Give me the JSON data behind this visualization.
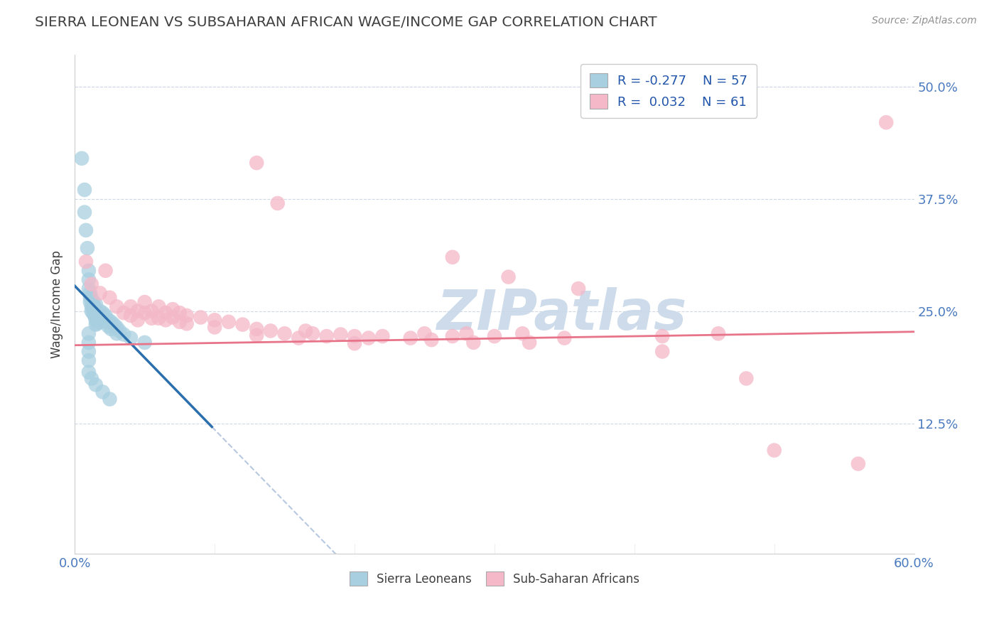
{
  "title": "SIERRA LEONEAN VS SUBSAHARAN AFRICAN WAGE/INCOME GAP CORRELATION CHART",
  "source": "Source: ZipAtlas.com",
  "ylabel": "Wage/Income Gap",
  "xmin": 0.0,
  "xmax": 0.6,
  "ymin": -0.02,
  "ymax": 0.535,
  "blue_color": "#a8cfe0",
  "pink_color": "#f4b8c8",
  "blue_line_color": "#2c6fad",
  "pink_line_color": "#e8748a",
  "dashed_line_color": "#b8c8e0",
  "title_color": "#404040",
  "source_color": "#909090",
  "watermark_color": "#c8d8e8",
  "watermark_text": "ZIPatlas",
  "blue_slope": -1.6,
  "blue_intercept": 0.278,
  "blue_line_xstart": 0.0,
  "blue_line_xend": 0.098,
  "blue_dash_xstart": 0.098,
  "blue_dash_xend": 0.5,
  "pink_slope": 0.025,
  "pink_intercept": 0.212,
  "pink_line_xstart": 0.0,
  "pink_line_xend": 0.6,
  "blue_scatter": [
    [
      0.005,
      0.42
    ],
    [
      0.007,
      0.385
    ],
    [
      0.007,
      0.36
    ],
    [
      0.008,
      0.34
    ],
    [
      0.009,
      0.32
    ],
    [
      0.01,
      0.295
    ],
    [
      0.01,
      0.285
    ],
    [
      0.01,
      0.275
    ],
    [
      0.011,
      0.27
    ],
    [
      0.011,
      0.265
    ],
    [
      0.011,
      0.26
    ],
    [
      0.012,
      0.265
    ],
    [
      0.012,
      0.255
    ],
    [
      0.012,
      0.25
    ],
    [
      0.013,
      0.26
    ],
    [
      0.013,
      0.255
    ],
    [
      0.013,
      0.248
    ],
    [
      0.014,
      0.255
    ],
    [
      0.014,
      0.25
    ],
    [
      0.014,
      0.245
    ],
    [
      0.015,
      0.258
    ],
    [
      0.015,
      0.252
    ],
    [
      0.015,
      0.245
    ],
    [
      0.015,
      0.24
    ],
    [
      0.015,
      0.235
    ],
    [
      0.016,
      0.248
    ],
    [
      0.016,
      0.242
    ],
    [
      0.016,
      0.236
    ],
    [
      0.017,
      0.245
    ],
    [
      0.017,
      0.238
    ],
    [
      0.018,
      0.25
    ],
    [
      0.018,
      0.242
    ],
    [
      0.02,
      0.248
    ],
    [
      0.02,
      0.24
    ],
    [
      0.022,
      0.245
    ],
    [
      0.022,
      0.238
    ],
    [
      0.024,
      0.24
    ],
    [
      0.024,
      0.233
    ],
    [
      0.026,
      0.238
    ],
    [
      0.026,
      0.23
    ],
    [
      0.028,
      0.235
    ],
    [
      0.03,
      0.232
    ],
    [
      0.03,
      0.225
    ],
    [
      0.032,
      0.228
    ],
    [
      0.035,
      0.224
    ],
    [
      0.04,
      0.22
    ],
    [
      0.05,
      0.215
    ],
    [
      0.01,
      0.225
    ],
    [
      0.01,
      0.215
    ],
    [
      0.01,
      0.205
    ],
    [
      0.01,
      0.195
    ],
    [
      0.01,
      0.182
    ],
    [
      0.012,
      0.175
    ],
    [
      0.015,
      0.168
    ],
    [
      0.02,
      0.16
    ],
    [
      0.025,
      0.152
    ]
  ],
  "pink_scatter": [
    [
      0.008,
      0.305
    ],
    [
      0.012,
      0.28
    ],
    [
      0.018,
      0.27
    ],
    [
      0.022,
      0.295
    ],
    [
      0.025,
      0.265
    ],
    [
      0.03,
      0.255
    ],
    [
      0.035,
      0.248
    ],
    [
      0.04,
      0.255
    ],
    [
      0.04,
      0.245
    ],
    [
      0.045,
      0.25
    ],
    [
      0.045,
      0.24
    ],
    [
      0.05,
      0.26
    ],
    [
      0.05,
      0.248
    ],
    [
      0.055,
      0.25
    ],
    [
      0.055,
      0.242
    ],
    [
      0.06,
      0.255
    ],
    [
      0.06,
      0.242
    ],
    [
      0.065,
      0.248
    ],
    [
      0.065,
      0.24
    ],
    [
      0.07,
      0.252
    ],
    [
      0.07,
      0.243
    ],
    [
      0.075,
      0.248
    ],
    [
      0.075,
      0.238
    ],
    [
      0.08,
      0.245
    ],
    [
      0.08,
      0.236
    ],
    [
      0.09,
      0.243
    ],
    [
      0.1,
      0.24
    ],
    [
      0.1,
      0.232
    ],
    [
      0.11,
      0.238
    ],
    [
      0.12,
      0.235
    ],
    [
      0.13,
      0.23
    ],
    [
      0.13,
      0.223
    ],
    [
      0.14,
      0.228
    ],
    [
      0.15,
      0.225
    ],
    [
      0.16,
      0.22
    ],
    [
      0.165,
      0.228
    ],
    [
      0.17,
      0.225
    ],
    [
      0.18,
      0.222
    ],
    [
      0.19,
      0.224
    ],
    [
      0.2,
      0.222
    ],
    [
      0.2,
      0.214
    ],
    [
      0.21,
      0.22
    ],
    [
      0.22,
      0.222
    ],
    [
      0.24,
      0.22
    ],
    [
      0.25,
      0.225
    ],
    [
      0.255,
      0.218
    ],
    [
      0.27,
      0.222
    ],
    [
      0.28,
      0.225
    ],
    [
      0.285,
      0.215
    ],
    [
      0.3,
      0.222
    ],
    [
      0.32,
      0.225
    ],
    [
      0.325,
      0.215
    ],
    [
      0.35,
      0.22
    ],
    [
      0.42,
      0.222
    ],
    [
      0.13,
      0.415
    ],
    [
      0.145,
      0.37
    ],
    [
      0.27,
      0.31
    ],
    [
      0.31,
      0.288
    ],
    [
      0.36,
      0.275
    ],
    [
      0.42,
      0.205
    ],
    [
      0.46,
      0.225
    ],
    [
      0.48,
      0.175
    ],
    [
      0.5,
      0.095
    ],
    [
      0.56,
      0.08
    ],
    [
      0.58,
      0.46
    ]
  ]
}
